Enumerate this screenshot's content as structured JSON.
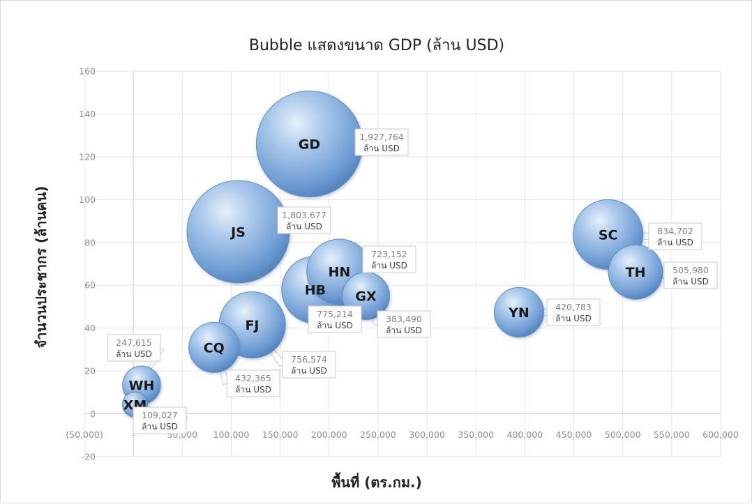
{
  "chart_data": {
    "type": "bubble",
    "title": "Bubble แสดงขนาด GDP (ล้าน USD)",
    "xlabel": "พื้นที่ (ตร.กม.)",
    "ylabel": "จำนวนประชากร (ล้านคน)",
    "xlim": [
      -50000,
      600000
    ],
    "ylim": [
      -20,
      160
    ],
    "x_ticks": [
      -50000,
      0,
      50000,
      100000,
      150000,
      200000,
      250000,
      300000,
      350000,
      400000,
      450000,
      500000,
      550000,
      600000
    ],
    "x_tick_labels": [
      "(50,000)",
      "-",
      "50,000",
      "100,000",
      "150,000",
      "200,000",
      "250,000",
      "300,000",
      "350,000",
      "400,000",
      "450,000",
      "500,000",
      "550,000",
      "600,000"
    ],
    "y_ticks": [
      -20,
      0,
      20,
      40,
      60,
      80,
      100,
      120,
      140,
      160
    ],
    "y_tick_labels": [
      "-20",
      "0",
      "20",
      "40",
      "60",
      "80",
      "100",
      "120",
      "140",
      "160"
    ],
    "grid": true,
    "legend": "none",
    "bubble_color": "#7ba7d7",
    "size_unit": "ล้าน USD",
    "points": [
      {
        "label": "GD",
        "x": 179800,
        "y": 126.0,
        "size": 1927764,
        "size_label": "1,927,764"
      },
      {
        "label": "JS",
        "x": 107200,
        "y": 85.0,
        "size": 1803677,
        "size_label": "1,803,677"
      },
      {
        "label": "SC",
        "x": 485000,
        "y": 83.7,
        "size": 834702,
        "size_label": "834,702"
      },
      {
        "label": "HB",
        "x": 185900,
        "y": 57.9,
        "size": 775214,
        "size_label": "775,214"
      },
      {
        "label": "FJ",
        "x": 121400,
        "y": 41.5,
        "size": 756574,
        "size_label": "756,574"
      },
      {
        "label": "HN",
        "x": 210400,
        "y": 66.4,
        "size": 723152,
        "size_label": "723,152"
      },
      {
        "label": "TH",
        "x": 513120,
        "y": 66.2,
        "size": 505980,
        "size_label": "505,980"
      },
      {
        "label": "CQ",
        "x": 82400,
        "y": 31.0,
        "size": 432365,
        "size_label": "432,365"
      },
      {
        "label": "YN",
        "x": 394000,
        "y": 47.4,
        "size": 420783,
        "size_label": "420,783"
      },
      {
        "label": "GX",
        "x": 237600,
        "y": 55.0,
        "size": 383490,
        "size_label": "383,490"
      },
      {
        "label": "WH",
        "x": 8400,
        "y": 13.4,
        "size": 247615,
        "size_label": "247,615"
      },
      {
        "label": "XM",
        "x": 1700,
        "y": 4.3,
        "size": 109027,
        "size_label": "109,027"
      }
    ]
  }
}
